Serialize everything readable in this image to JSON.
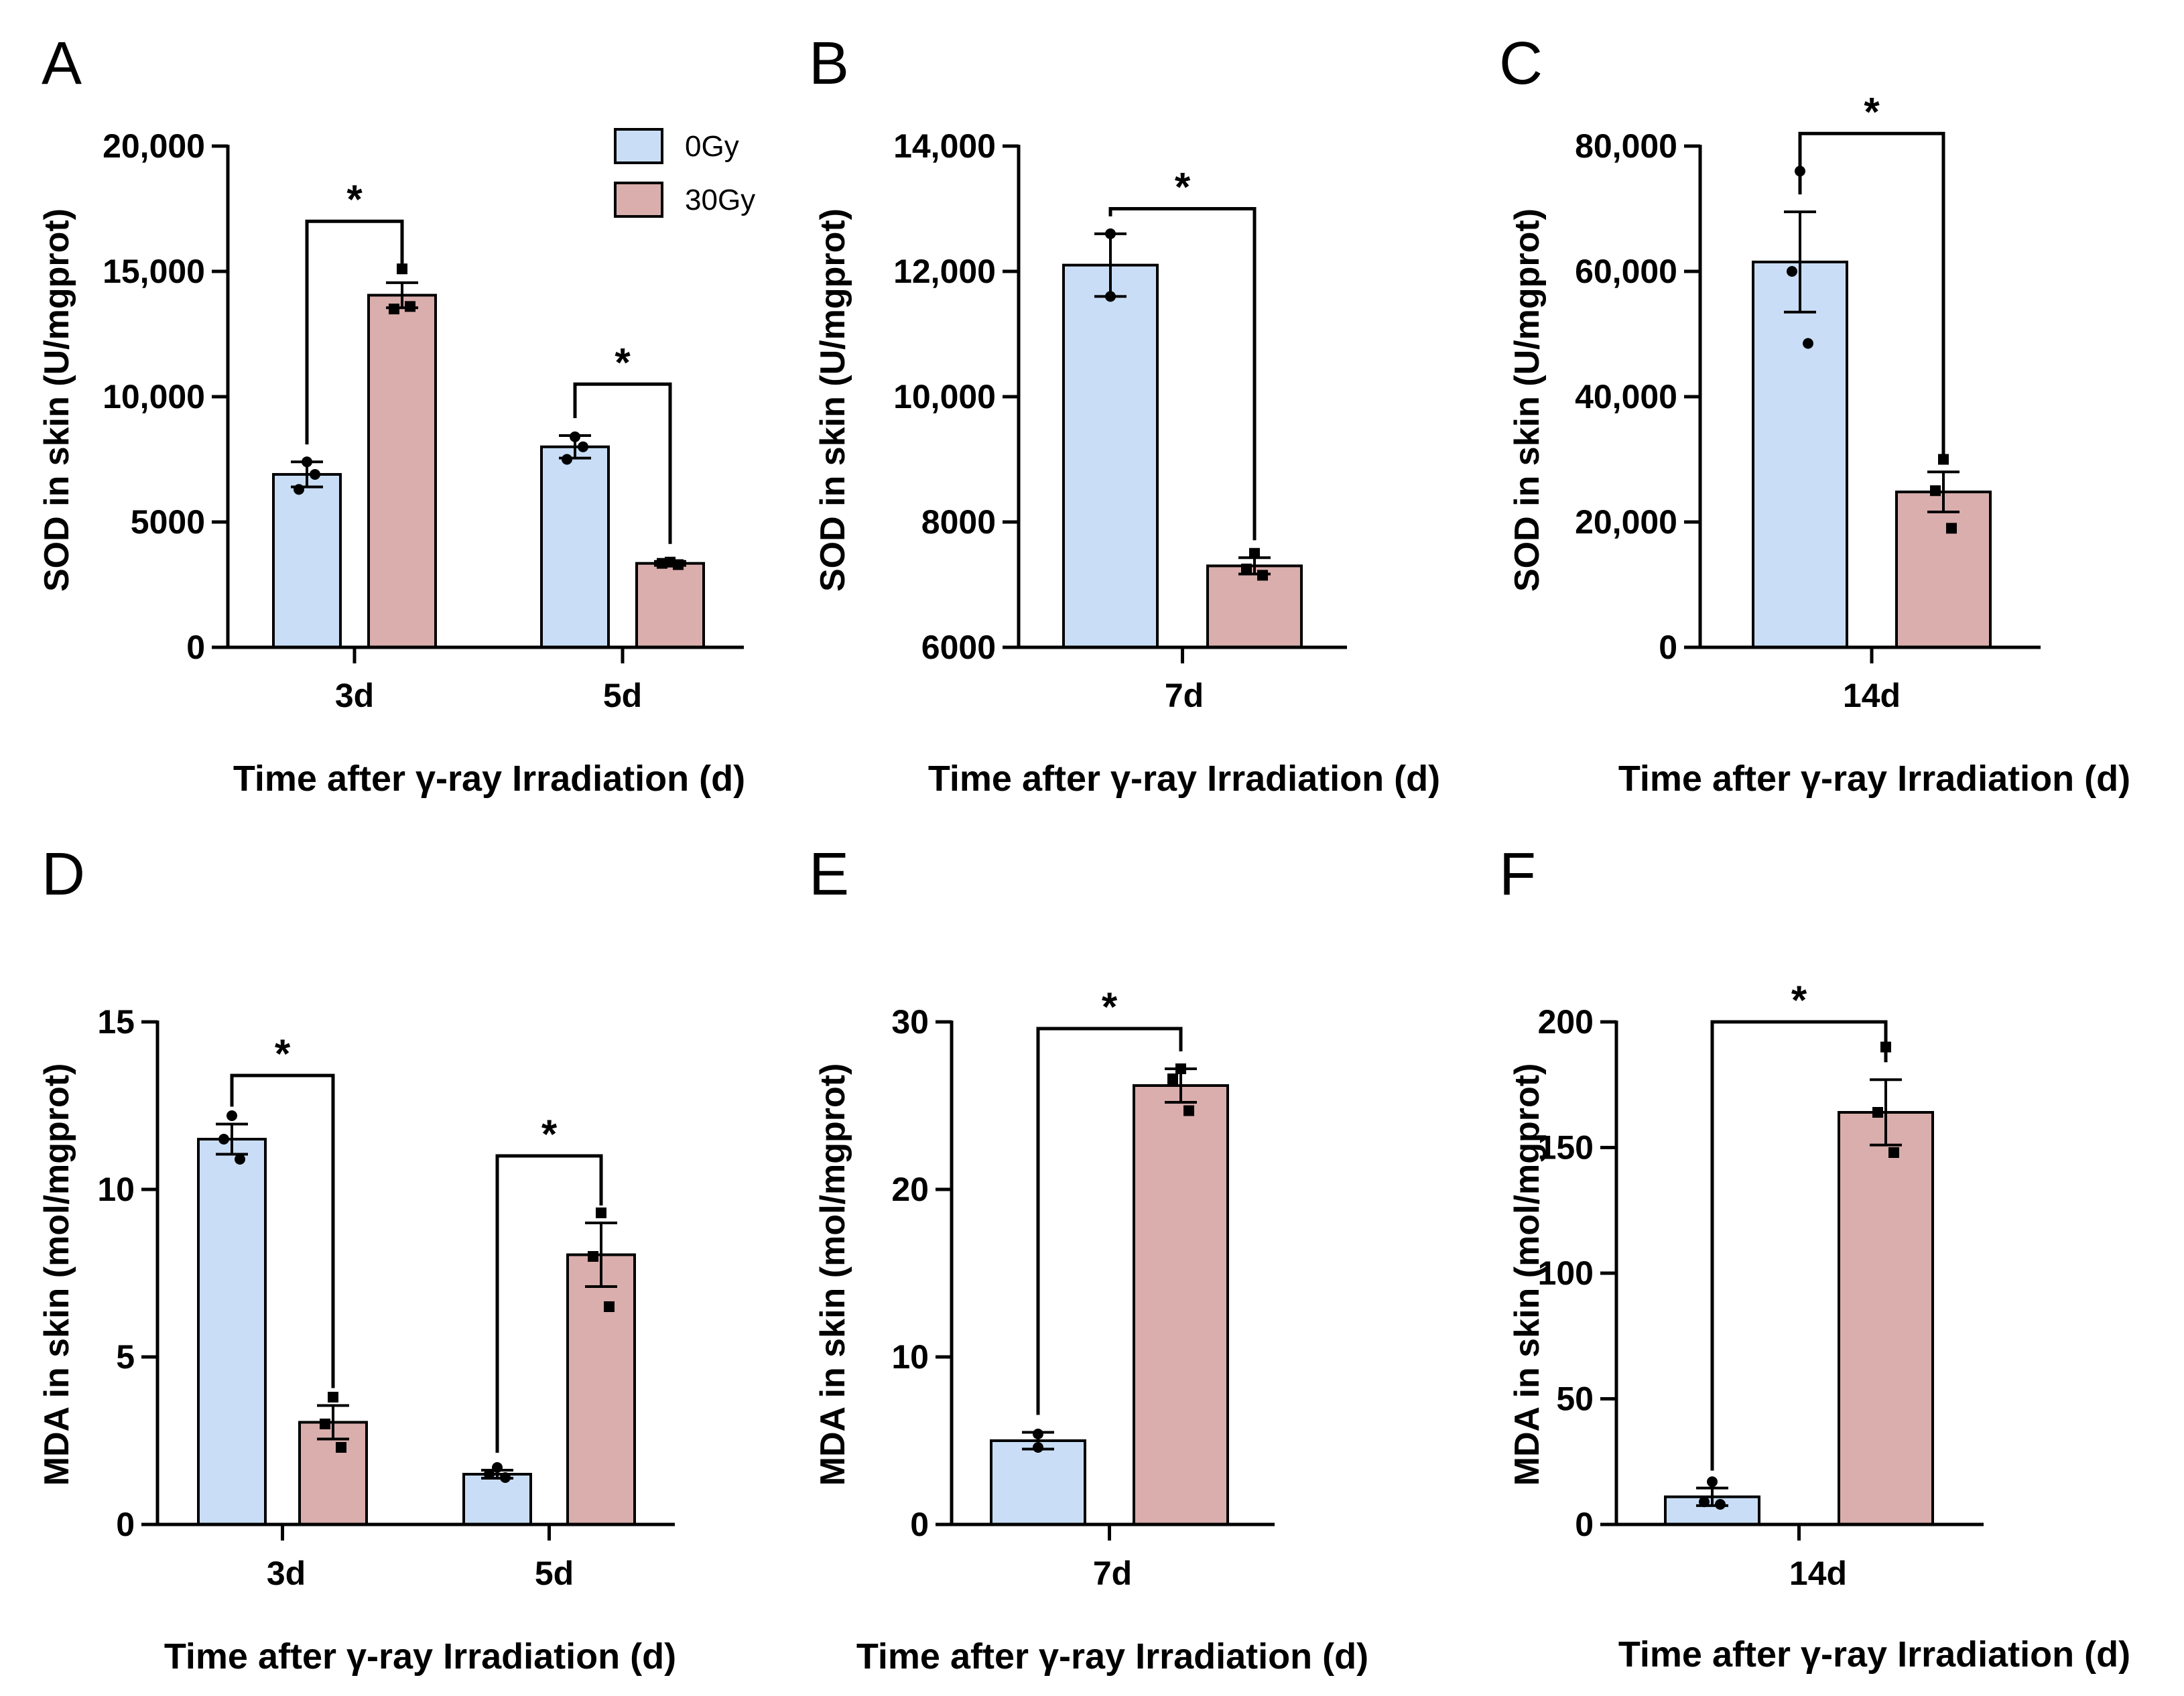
{
  "colors": {
    "g0": "#c9def6",
    "g30": "#d9aeac",
    "ink": "#000000"
  },
  "legend": [
    {
      "label": "0Gy",
      "color": "#c9def6"
    },
    {
      "label": "30Gy",
      "color": "#d9aeac"
    }
  ],
  "chart_data": [
    {
      "panel": "A",
      "type": "bar",
      "ylabel": "SOD in skin (U/mgprot)",
      "xlabel": "Time after γ-ray Irradiation (d)",
      "ylim": [
        0,
        20000
      ],
      "yticks": [
        0,
        5000,
        10000,
        15000,
        20000
      ],
      "ytick_labels": [
        "0",
        "5000",
        "10,000",
        "15,000",
        "20,000"
      ],
      "categories": [
        "3d",
        "5d"
      ],
      "series": [
        {
          "name": "0Gy",
          "values": [
            6900,
            8000
          ],
          "errors": [
            500,
            450
          ],
          "points": [
            [
              7400,
              6300,
              6900
            ],
            [
              8400,
              7500,
              8000
            ]
          ]
        },
        {
          "name": "30Gy",
          "values": [
            14050,
            3350
          ],
          "errors": [
            500,
            80
          ],
          "points": [
            [
              15100,
              13500,
              13600
            ],
            [
              3400,
              3350,
              3300
            ]
          ]
        }
      ],
      "significance": [
        {
          "category": 0,
          "label": "*",
          "y": 17000
        },
        {
          "category": 1,
          "label": "*",
          "y": 10500
        }
      ]
    },
    {
      "panel": "B",
      "type": "bar",
      "ylabel": "SOD in skin (U/mgprot)",
      "xlabel": "Time after γ-ray Irradiation (d)",
      "ylim": [
        6000,
        14000
      ],
      "yticks": [
        6000,
        8000,
        10000,
        12000,
        14000
      ],
      "ytick_labels": [
        "6000",
        "8000",
        "10,000",
        "12,000",
        "14,000"
      ],
      "categories": [
        "7d"
      ],
      "series": [
        {
          "name": "0Gy",
          "values": [
            12100
          ],
          "errors": [
            500
          ],
          "points": [
            [
              12600,
              11600
            ]
          ]
        },
        {
          "name": "30Gy",
          "values": [
            7300
          ],
          "errors": [
            130
          ],
          "points": [
            [
              7500,
              7250,
              7150
            ]
          ]
        }
      ],
      "significance": [
        {
          "category": 0,
          "label": "*",
          "y": 13000
        }
      ]
    },
    {
      "panel": "C",
      "type": "bar",
      "ylabel": "SOD in skin (U/mgprot)",
      "xlabel": "Time after γ-ray Irradiation (d)",
      "ylim": [
        0,
        80000
      ],
      "yticks": [
        0,
        20000,
        40000,
        60000,
        80000
      ],
      "ytick_labels": [
        "0",
        "20,000",
        "40,000",
        "60,000",
        "80,000"
      ],
      "categories": [
        "14d"
      ],
      "series": [
        {
          "name": "0Gy",
          "values": [
            61500
          ],
          "errors": [
            8000
          ],
          "points": [
            [
              76000,
              60000,
              48500
            ]
          ]
        },
        {
          "name": "30Gy",
          "values": [
            24800
          ],
          "errors": [
            3200
          ],
          "points": [
            [
              30000,
              25000,
              19000
            ]
          ]
        }
      ],
      "significance": [
        {
          "category": 0,
          "label": "*",
          "y": 82000
        }
      ]
    },
    {
      "panel": "D",
      "type": "bar",
      "ylabel": "MDA in skin (mol/mgprot)",
      "xlabel": "Time after γ-ray Irradiation (d)",
      "ylim": [
        0,
        15
      ],
      "yticks": [
        0,
        5,
        10,
        15
      ],
      "ytick_labels": [
        "0",
        "5",
        "10",
        "15"
      ],
      "categories": [
        "3d",
        "5d"
      ],
      "series": [
        {
          "name": "0Gy",
          "values": [
            11.5,
            1.5
          ],
          "errors": [
            0.45,
            0.12
          ],
          "points": [
            [
              12.2,
              11.5,
              10.9
            ],
            [
              1.7,
              1.5,
              1.4
            ]
          ]
        },
        {
          "name": "30Gy",
          "values": [
            3.05,
            8.05
          ],
          "errors": [
            0.5,
            0.95
          ],
          "points": [
            [
              3.8,
              3.0,
              2.3
            ],
            [
              9.3,
              8.0,
              6.5
            ]
          ]
        }
      ],
      "significance": [
        {
          "category": 0,
          "label": "*",
          "y": 13.4
        },
        {
          "category": 1,
          "label": "*",
          "y": 11.0
        }
      ]
    },
    {
      "panel": "E",
      "type": "bar",
      "ylabel": "MDA in skin (mol/mgprot)",
      "xlabel": "Time after γ-ray Irradiation (d)",
      "ylim": [
        0,
        30
      ],
      "yticks": [
        0,
        10,
        20,
        30
      ],
      "ytick_labels": [
        "0",
        "10",
        "20",
        "30"
      ],
      "categories": [
        "7d"
      ],
      "series": [
        {
          "name": "0Gy",
          "values": [
            5.0
          ],
          "errors": [
            0.5
          ],
          "points": [
            [
              5.4,
              4.6
            ]
          ]
        },
        {
          "name": "30Gy",
          "values": [
            26.2
          ],
          "errors": [
            1.0
          ],
          "points": [
            [
              27.2,
              26.6,
              24.7
            ]
          ]
        }
      ],
      "significance": [
        {
          "category": 0,
          "label": "*",
          "y": 29.6
        }
      ]
    },
    {
      "panel": "F",
      "type": "bar",
      "ylabel": "MDA in skin (mol/mgprot)",
      "xlabel": "Time after γ-ray Irradiation (d)",
      "ylim": [
        0,
        200
      ],
      "yticks": [
        0,
        50,
        100,
        150,
        200
      ],
      "ytick_labels": [
        "0",
        "50",
        "100",
        "150",
        "200"
      ],
      "categories": [
        "14d"
      ],
      "series": [
        {
          "name": "0Gy",
          "values": [
            11
          ],
          "errors": [
            3.5
          ],
          "points": [
            [
              17,
              9,
              8
            ]
          ]
        },
        {
          "name": "30Gy",
          "values": [
            164
          ],
          "errors": [
            13
          ],
          "points": [
            [
              190,
              164,
              148
            ]
          ]
        }
      ],
      "significance": [
        {
          "category": 0,
          "label": "*",
          "y": 200
        }
      ]
    }
  ]
}
